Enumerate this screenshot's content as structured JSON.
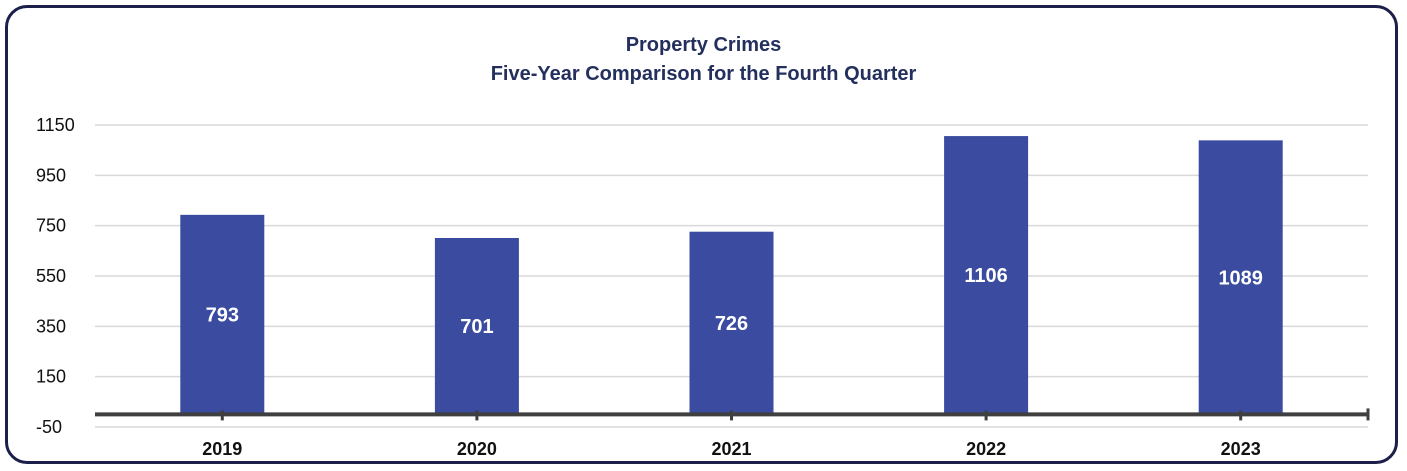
{
  "chart_data": {
    "type": "bar",
    "title": "Property Crimes",
    "subtitle": "Five-Year Comparison for the Fourth Quarter",
    "categories": [
      "2019",
      "2020",
      "2021",
      "2022",
      "2023"
    ],
    "values": [
      793,
      701,
      726,
      1106,
      1089
    ],
    "data_labels": [
      "793",
      "701",
      "726",
      "1106",
      "1089"
    ],
    "yticks": [
      "-50",
      "150",
      "350",
      "550",
      "750",
      "950",
      "1150"
    ],
    "ylim": [
      -50,
      1150
    ],
    "xlabel": "",
    "ylabel": "",
    "grid": true,
    "legend": "none",
    "bar_color": "#3a4ba0",
    "label_color": "#ffffff",
    "axis_color": "#3f3f3f"
  }
}
